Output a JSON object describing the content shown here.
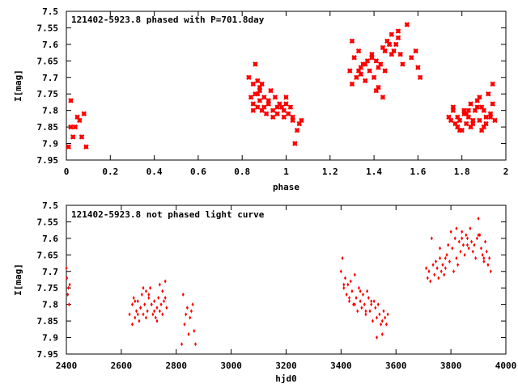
{
  "chart_data": [
    {
      "type": "scatter",
      "title": "121402-5923.8 phased with P=701.8day",
      "xlabel": "phase",
      "ylabel": "I[mag]",
      "xlim": [
        0,
        2
      ],
      "ylim": [
        7.95,
        7.5
      ],
      "y_inverted": true,
      "x_ticks": [
        0,
        0.2,
        0.4,
        0.6,
        0.8,
        1,
        1.2,
        1.4,
        1.6,
        1.8,
        2
      ],
      "x_tick_labels": [
        "0",
        "0.2",
        "0.4",
        "0.6",
        "0.8",
        "1",
        "1.2",
        "1.4",
        "1.6",
        "1.8",
        "2"
      ],
      "y_ticks": [
        7.5,
        7.55,
        7.6,
        7.65,
        7.7,
        7.75,
        7.8,
        7.85,
        7.9,
        7.95
      ],
      "y_tick_labels": [
        "7.5",
        "7.55",
        "7.6",
        "7.65",
        "7.7",
        "7.75",
        "7.8",
        "7.85",
        "7.9",
        "7.95"
      ],
      "grid": false,
      "marker_color": "#ff0000",
      "marker": "cross",
      "series": [
        {
          "x": [
            0.01,
            0.02,
            0.03,
            0.04,
            0.05,
            0.07,
            0.08,
            0.09,
            0.02,
            0.06,
            0.83,
            0.84,
            0.85,
            0.85,
            0.86,
            0.86,
            0.87,
            0.87,
            0.88,
            0.88,
            0.89,
            0.89,
            0.9,
            0.9,
            0.91,
            0.92,
            0.93,
            0.94,
            0.95,
            0.96,
            0.97,
            0.98,
            0.99,
            1.0,
            1.01,
            1.02,
            1.03,
            1.04,
            1.05,
            1.06,
            1.07,
            0.85,
            0.88,
            0.92,
            0.96,
            1.0,
            1.03,
            0.87,
            0.94,
            0.99,
            1.29,
            1.3,
            1.31,
            1.32,
            1.33,
            1.34,
            1.35,
            1.36,
            1.37,
            1.38,
            1.39,
            1.4,
            1.41,
            1.42,
            1.43,
            1.44,
            1.45,
            1.46,
            1.47,
            1.48,
            1.49,
            1.5,
            1.51,
            1.52,
            1.53,
            1.55,
            1.57,
            1.59,
            1.6,
            1.61,
            1.3,
            1.33,
            1.36,
            1.39,
            1.42,
            1.45,
            1.48,
            1.51,
            1.34,
            1.44,
            1.41,
            1.47,
            1.74,
            1.75,
            1.76,
            1.77,
            1.78,
            1.79,
            1.8,
            1.81,
            1.82,
            1.83,
            1.84,
            1.85,
            1.86,
            1.87,
            1.88,
            1.89,
            1.9,
            1.91,
            1.92,
            1.93,
            1.94,
            1.95,
            1.76,
            1.79,
            1.82,
            1.85,
            1.88,
            1.91,
            1.94,
            1.78,
            1.84,
            1.9,
            1.81,
            1.87,
            1.93,
            1.83,
            1.89
          ],
          "y": [
            7.91,
            7.77,
            7.88,
            7.85,
            7.82,
            7.88,
            7.81,
            7.91,
            7.85,
            7.83,
            7.7,
            7.76,
            7.72,
            7.78,
            7.66,
            7.75,
            7.79,
            7.71,
            7.74,
            7.77,
            7.8,
            7.72,
            7.76,
            7.79,
            7.81,
            7.78,
            7.74,
            7.8,
            7.76,
            7.81,
            7.78,
            7.79,
            7.82,
            7.78,
            7.81,
            7.79,
            7.83,
            7.9,
            7.86,
            7.84,
            7.83,
            7.8,
            7.73,
            7.77,
            7.79,
            7.76,
            7.82,
            7.75,
            7.82,
            7.8,
            7.68,
            7.59,
            7.64,
            7.7,
            7.62,
            7.69,
            7.66,
            7.71,
            7.65,
            7.68,
            7.63,
            7.7,
            7.74,
            7.67,
            7.66,
            7.61,
            7.62,
            7.59,
            7.6,
            7.57,
            7.62,
            7.6,
            7.56,
            7.63,
            7.66,
            7.54,
            7.64,
            7.62,
            7.67,
            7.7,
            7.72,
            7.68,
            7.66,
            7.64,
            7.73,
            7.68,
            7.63,
            7.58,
            7.67,
            7.76,
            7.65,
            7.6,
            7.82,
            7.83,
            7.79,
            7.84,
            7.85,
            7.83,
            7.86,
            7.8,
            7.84,
            7.82,
            7.78,
            7.84,
            7.8,
            7.77,
            7.83,
            7.79,
            7.85,
            7.82,
            7.75,
            7.81,
            7.72,
            7.83,
            7.8,
            7.86,
            7.81,
            7.83,
            7.76,
            7.84,
            7.78,
            7.82,
            7.85,
            7.8,
            7.81,
            7.79,
            7.82,
            7.8,
            7.86
          ],
          "marker_size": 5
        }
      ]
    },
    {
      "type": "scatter",
      "title": "121402-5923.8 not phased light curve",
      "xlabel": "hjd0",
      "ylabel": "I[mag]",
      "xlim": [
        2400,
        4000
      ],
      "ylim": [
        7.95,
        7.5
      ],
      "y_inverted": true,
      "x_ticks": [
        2400,
        2600,
        2800,
        3000,
        3200,
        3400,
        3600,
        3800,
        4000
      ],
      "x_tick_labels": [
        "2400",
        "2600",
        "2800",
        "3000",
        "3200",
        "3400",
        "3600",
        "3800",
        "4000"
      ],
      "y_ticks": [
        7.5,
        7.55,
        7.6,
        7.65,
        7.7,
        7.75,
        7.8,
        7.85,
        7.9,
        7.95
      ],
      "y_tick_labels": [
        "7.5",
        "7.55",
        "7.6",
        "7.65",
        "7.7",
        "7.75",
        "7.8",
        "7.85",
        "7.9",
        "7.95"
      ],
      "grid": false,
      "marker_color": "#ff0000",
      "marker": "diamond",
      "series": [
        {
          "x": [
            2400,
            2402,
            2405,
            2408,
            2410,
            2412,
            2630,
            2640,
            2645,
            2650,
            2655,
            2660,
            2665,
            2670,
            2675,
            2680,
            2685,
            2690,
            2695,
            2700,
            2705,
            2710,
            2715,
            2720,
            2725,
            2730,
            2735,
            2740,
            2745,
            2750,
            2755,
            2760,
            2765,
            2640,
            2660,
            2680,
            2700,
            2720,
            2740,
            2760,
            2650,
            2670,
            2690,
            2710,
            2730,
            2750,
            2820,
            2825,
            2830,
            2835,
            2840,
            2845,
            2850,
            2855,
            2860,
            2865,
            2870,
            3400,
            3405,
            3410,
            3415,
            3420,
            3425,
            3430,
            3435,
            3440,
            3445,
            3450,
            3455,
            3460,
            3465,
            3470,
            3475,
            3480,
            3485,
            3490,
            3495,
            3500,
            3505,
            3510,
            3515,
            3520,
            3525,
            3530,
            3535,
            3540,
            3545,
            3550,
            3555,
            3560,
            3565,
            3570,
            3410,
            3430,
            3450,
            3470,
            3490,
            3510,
            3530,
            3550,
            3710,
            3715,
            3720,
            3725,
            3730,
            3735,
            3740,
            3745,
            3750,
            3755,
            3760,
            3765,
            3770,
            3775,
            3780,
            3785,
            3790,
            3795,
            3800,
            3805,
            3810,
            3815,
            3820,
            3825,
            3830,
            3835,
            3840,
            3845,
            3850,
            3855,
            3860,
            3865,
            3870,
            3875,
            3880,
            3885,
            3890,
            3895,
            3900,
            3905,
            3910,
            3915,
            3920,
            3925,
            3930,
            3935,
            3940,
            3945,
            3760,
            3780,
            3820,
            3840,
            3860,
            3900,
            3920
          ],
          "y": [
            7.69,
            7.72,
            7.77,
            7.75,
            7.8,
            7.74,
            7.83,
            7.8,
            7.78,
            7.84,
            7.82,
            7.79,
            7.85,
            7.81,
            7.77,
            7.83,
            7.8,
            7.76,
            7.82,
            7.78,
            7.75,
            7.8,
            7.83,
            7.79,
            7.84,
            7.81,
            7.78,
            7.82,
            7.8,
            7.76,
            7.79,
            7.73,
            7.81,
            7.86,
            7.83,
            7.75,
            7.77,
            7.82,
            7.74,
            7.78,
            7.79,
            7.81,
            7.84,
            7.8,
            7.85,
            7.83,
            7.92,
            7.77,
            7.86,
            7.83,
            7.81,
            7.89,
            7.84,
            7.82,
            7.8,
            7.88,
            7.92,
            7.7,
            7.66,
            7.75,
            7.72,
            7.77,
            7.74,
            7.79,
            7.73,
            7.76,
            7.8,
            7.71,
            7.78,
            7.82,
            7.75,
            7.79,
            7.81,
            7.77,
            7.8,
            7.83,
            7.76,
            7.78,
            7.82,
            7.8,
            7.85,
            7.79,
            7.81,
            7.84,
            7.8,
            7.83,
            7.86,
            7.89,
            7.82,
            7.84,
            7.86,
            7.83,
            7.74,
            7.78,
            7.8,
            7.76,
            7.82,
            7.79,
            7.9,
            7.85,
            7.69,
            7.72,
            7.7,
            7.73,
            7.6,
            7.68,
            7.71,
            7.67,
            7.69,
            7.72,
            7.66,
            7.7,
            7.68,
            7.71,
            7.69,
            7.65,
            7.62,
            7.67,
            7.58,
            7.63,
            7.7,
            7.6,
            7.66,
            7.68,
            7.61,
            7.64,
            7.58,
            7.62,
            7.65,
            7.59,
            7.6,
            7.63,
            7.57,
            7.61,
            7.64,
            7.62,
            7.66,
            7.6,
            7.54,
            7.59,
            7.63,
            7.65,
            7.67,
            7.61,
            7.64,
            7.68,
            7.66,
            7.7,
            7.63,
            7.66,
            7.57,
            7.6,
            7.62,
            7.59,
            7.66
          ],
          "marker_size": 4
        }
      ]
    }
  ]
}
